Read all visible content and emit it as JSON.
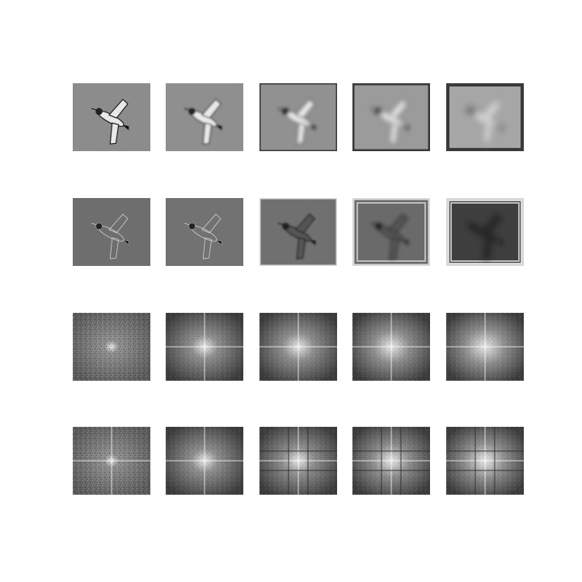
{
  "figure": {
    "rows": [
      {
        "kind": "bird",
        "variant": "lowpass",
        "levels": [
          0,
          1,
          2,
          3,
          4
        ]
      },
      {
        "kind": "bird",
        "variant": "highpass",
        "levels": [
          0,
          1,
          2,
          3,
          4
        ]
      },
      {
        "kind": "spectrum",
        "variant": "lowpass",
        "levels": [
          0,
          1,
          2,
          3,
          4
        ]
      },
      {
        "kind": "spectrum",
        "variant": "highpass",
        "levels": [
          0,
          1,
          2,
          3,
          4
        ]
      }
    ]
  }
}
